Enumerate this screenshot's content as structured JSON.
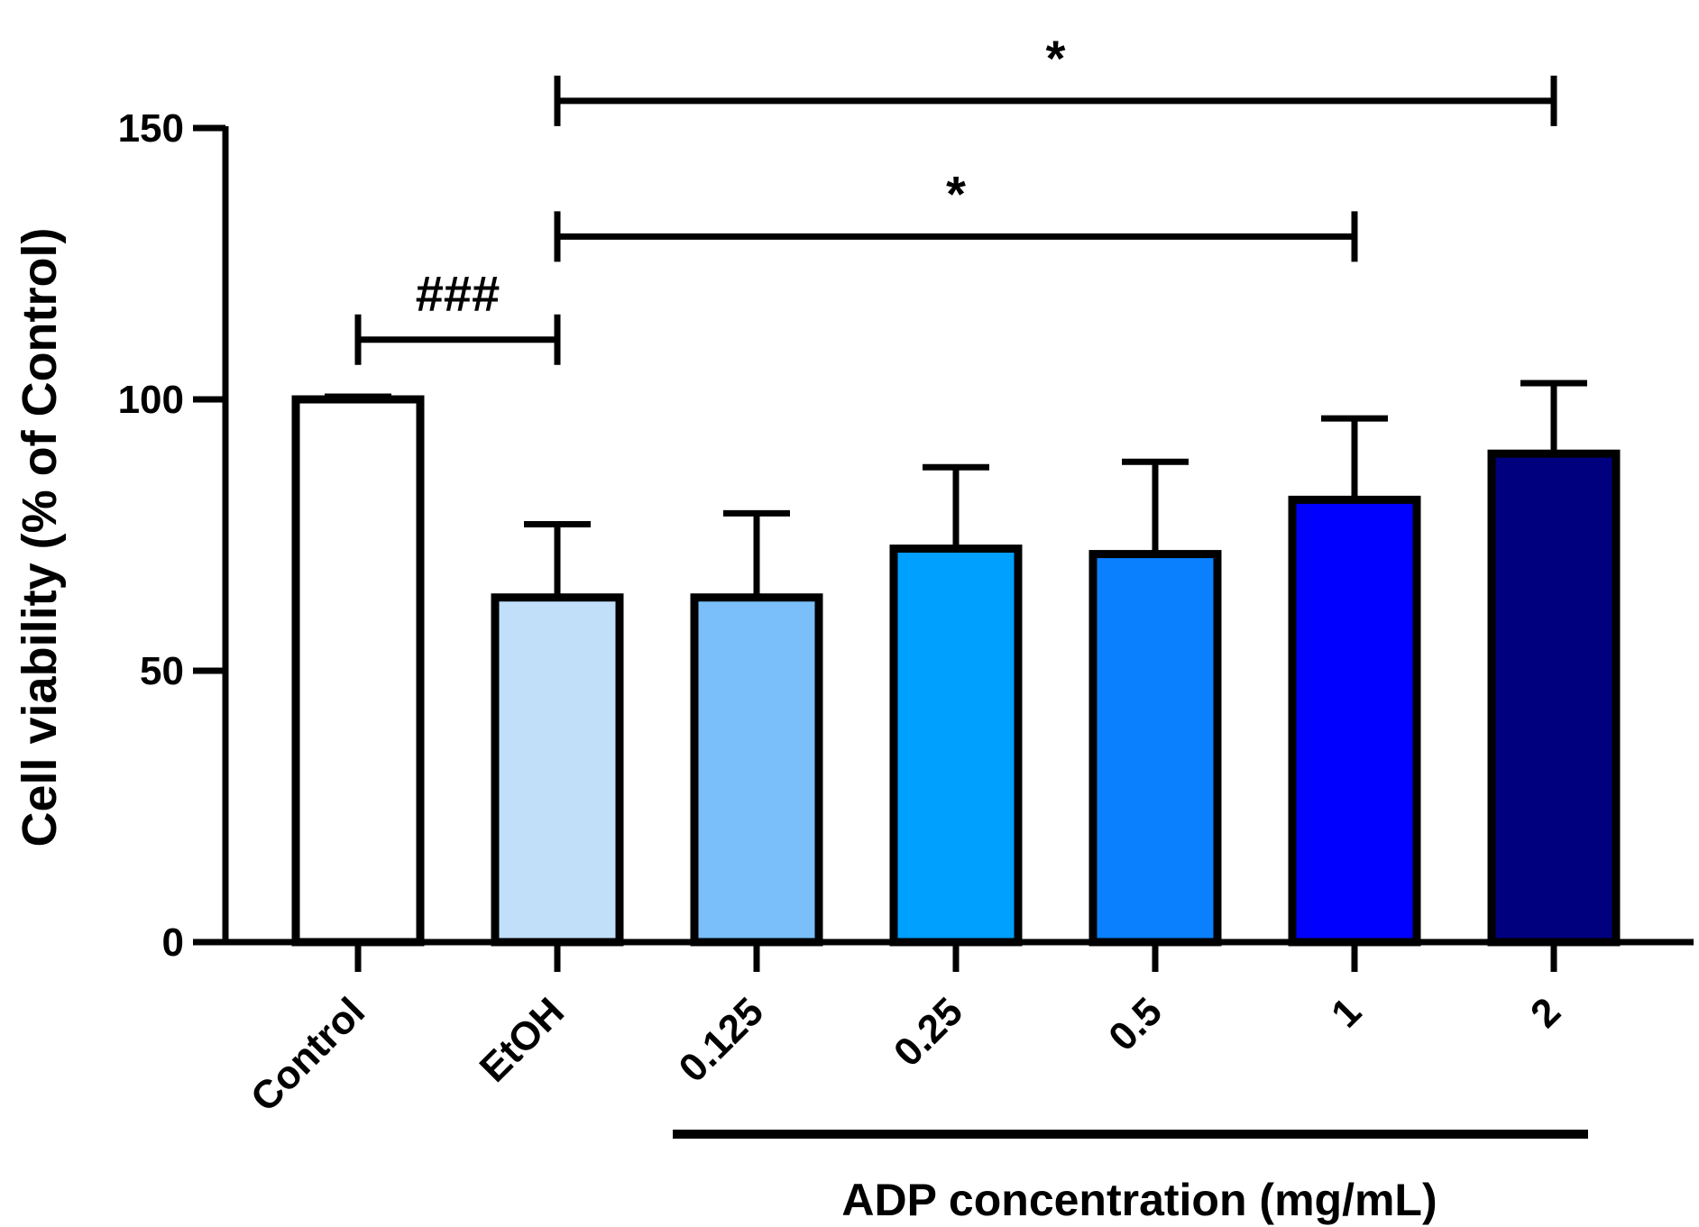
{
  "chart_data": {
    "type": "bar",
    "title": "",
    "ylabel": "Cell viability (% of Control)",
    "xlabel": "ADP concentration (mg/mL)",
    "ylim": [
      0,
      150
    ],
    "yticks": [
      0,
      50,
      100,
      150
    ],
    "categories": [
      "Control",
      "EtOH",
      "0.125",
      "0.25",
      "0.5",
      "1",
      "2"
    ],
    "values": [
      100,
      63.5,
      63.5,
      72.5,
      71.5,
      81.5,
      90
    ],
    "errors": [
      0.5,
      13.5,
      15.5,
      15,
      17,
      15,
      13
    ],
    "colors": [
      "#ffffff",
      "#c2dffa",
      "#7abffa",
      "#00a0ff",
      "#0a80ff",
      "#0000ff",
      "#00007f"
    ],
    "group_bracket": {
      "from": "0.125",
      "to": "2",
      "label": "ADP concentration (mg/mL)"
    },
    "significance": [
      {
        "from": "Control",
        "to": "EtOH",
        "label": "###",
        "y": 111
      },
      {
        "from": "EtOH",
        "to": "1",
        "label": "*",
        "y": 130
      },
      {
        "from": "EtOH",
        "to": "2",
        "label": "*",
        "y": 155
      }
    ],
    "grid": false,
    "legend": "none"
  }
}
